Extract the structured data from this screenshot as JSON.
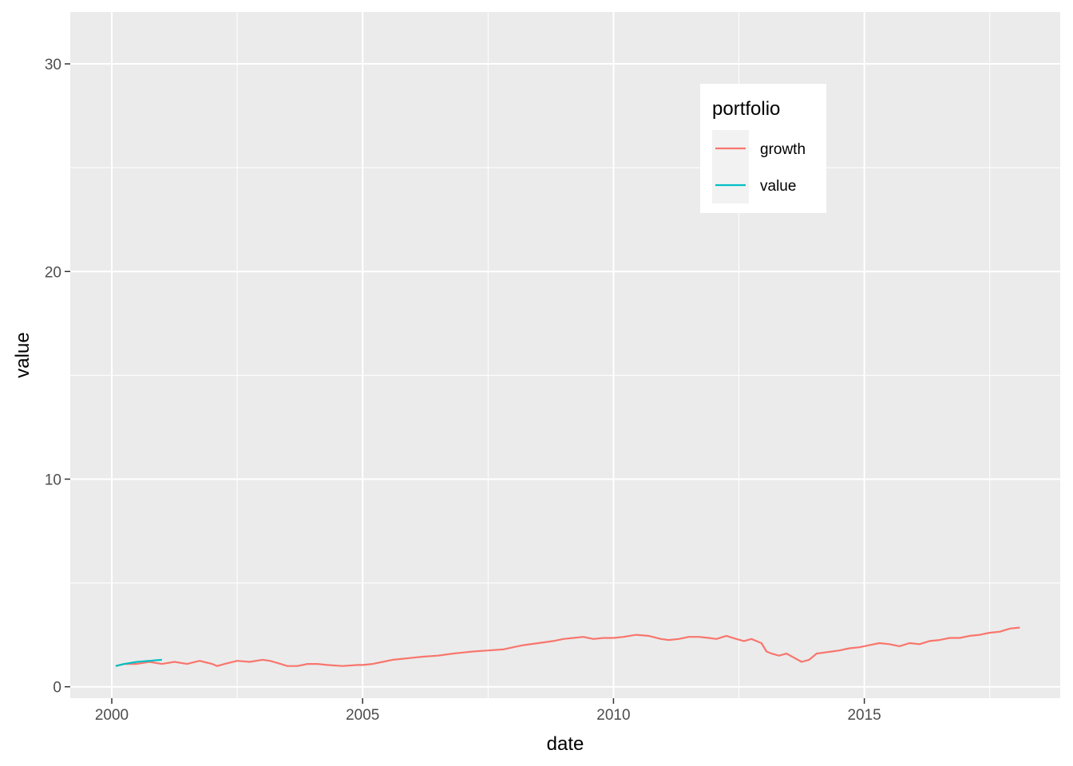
{
  "chart_data": {
    "type": "line",
    "xlabel": "date",
    "ylabel": "value",
    "x_ticks": [
      2000,
      2005,
      2010,
      2015
    ],
    "y_ticks": [
      0,
      10,
      20,
      30
    ],
    "xlim": [
      2000.0,
      2019.0
    ],
    "ylim": [
      -0.55,
      32.5
    ],
    "grid": true,
    "legend": {
      "title": "portfolio",
      "position": "top-right-inside"
    },
    "series": [
      {
        "name": "growth",
        "color": "#F8766D",
        "points": [
          [
            2000.08,
            1.0
          ],
          [
            2000.25,
            1.1
          ],
          [
            2000.5,
            1.1
          ],
          [
            2000.75,
            1.2
          ],
          [
            2001.0,
            1.1
          ],
          [
            2001.25,
            1.2
          ],
          [
            2001.5,
            1.1
          ],
          [
            2001.75,
            1.25
          ],
          [
            2002.0,
            1.1
          ],
          [
            2002.1,
            1.0
          ],
          [
            2002.25,
            1.1
          ],
          [
            2002.5,
            1.25
          ],
          [
            2002.75,
            1.2
          ],
          [
            2003.0,
            1.3
          ],
          [
            2003.15,
            1.25
          ],
          [
            2003.3,
            1.15
          ],
          [
            2003.5,
            1.0
          ],
          [
            2003.7,
            1.0
          ],
          [
            2003.9,
            1.1
          ],
          [
            2004.1,
            1.1
          ],
          [
            2004.3,
            1.05
          ],
          [
            2004.6,
            1.0
          ],
          [
            2004.9,
            1.05
          ],
          [
            2005.0,
            1.05
          ],
          [
            2005.2,
            1.1
          ],
          [
            2005.4,
            1.2
          ],
          [
            2005.6,
            1.3
          ],
          [
            2005.8,
            1.35
          ],
          [
            2006.0,
            1.4
          ],
          [
            2006.2,
            1.45
          ],
          [
            2006.5,
            1.5
          ],
          [
            2006.8,
            1.6
          ],
          [
            2007.0,
            1.65
          ],
          [
            2007.2,
            1.7
          ],
          [
            2007.5,
            1.75
          ],
          [
            2007.8,
            1.8
          ],
          [
            2008.0,
            1.9
          ],
          [
            2008.2,
            2.0
          ],
          [
            2008.5,
            2.1
          ],
          [
            2008.8,
            2.2
          ],
          [
            2009.0,
            2.3
          ],
          [
            2009.2,
            2.35
          ],
          [
            2009.4,
            2.4
          ],
          [
            2009.6,
            2.3
          ],
          [
            2009.8,
            2.35
          ],
          [
            2010.0,
            2.35
          ],
          [
            2010.2,
            2.4
          ],
          [
            2010.45,
            2.5
          ],
          [
            2010.7,
            2.45
          ],
          [
            2010.95,
            2.3
          ],
          [
            2011.1,
            2.25
          ],
          [
            2011.3,
            2.3
          ],
          [
            2011.5,
            2.4
          ],
          [
            2011.7,
            2.4
          ],
          [
            2011.9,
            2.35
          ],
          [
            2012.05,
            2.3
          ],
          [
            2012.25,
            2.45
          ],
          [
            2012.45,
            2.3
          ],
          [
            2012.6,
            2.2
          ],
          [
            2012.75,
            2.3
          ],
          [
            2012.85,
            2.2
          ],
          [
            2012.95,
            2.1
          ],
          [
            2013.05,
            1.7
          ],
          [
            2013.15,
            1.6
          ],
          [
            2013.3,
            1.5
          ],
          [
            2013.45,
            1.6
          ],
          [
            2013.6,
            1.4
          ],
          [
            2013.75,
            1.2
          ],
          [
            2013.9,
            1.3
          ],
          [
            2014.05,
            1.6
          ],
          [
            2014.2,
            1.65
          ],
          [
            2014.35,
            1.7
          ],
          [
            2014.5,
            1.75
          ],
          [
            2014.7,
            1.85
          ],
          [
            2014.9,
            1.9
          ],
          [
            2015.1,
            2.0
          ],
          [
            2015.3,
            2.1
          ],
          [
            2015.5,
            2.05
          ],
          [
            2015.7,
            1.95
          ],
          [
            2015.9,
            2.1
          ],
          [
            2016.1,
            2.05
          ],
          [
            2016.3,
            2.2
          ],
          [
            2016.5,
            2.25
          ],
          [
            2016.7,
            2.35
          ],
          [
            2016.9,
            2.35
          ],
          [
            2017.1,
            2.45
          ],
          [
            2017.3,
            2.5
          ],
          [
            2017.5,
            2.6
          ],
          [
            2017.7,
            2.65
          ],
          [
            2017.9,
            2.8
          ],
          [
            2018.1,
            2.85
          ]
        ]
      },
      {
        "name": "value",
        "color": "#00BFC4",
        "points": [
          [
            2000.08,
            1.0
          ],
          [
            2000.25,
            1.1
          ],
          [
            2000.5,
            1.2
          ],
          [
            2000.75,
            1.25
          ],
          [
            2001.0,
            1.3
          ]
        ]
      }
    ]
  }
}
